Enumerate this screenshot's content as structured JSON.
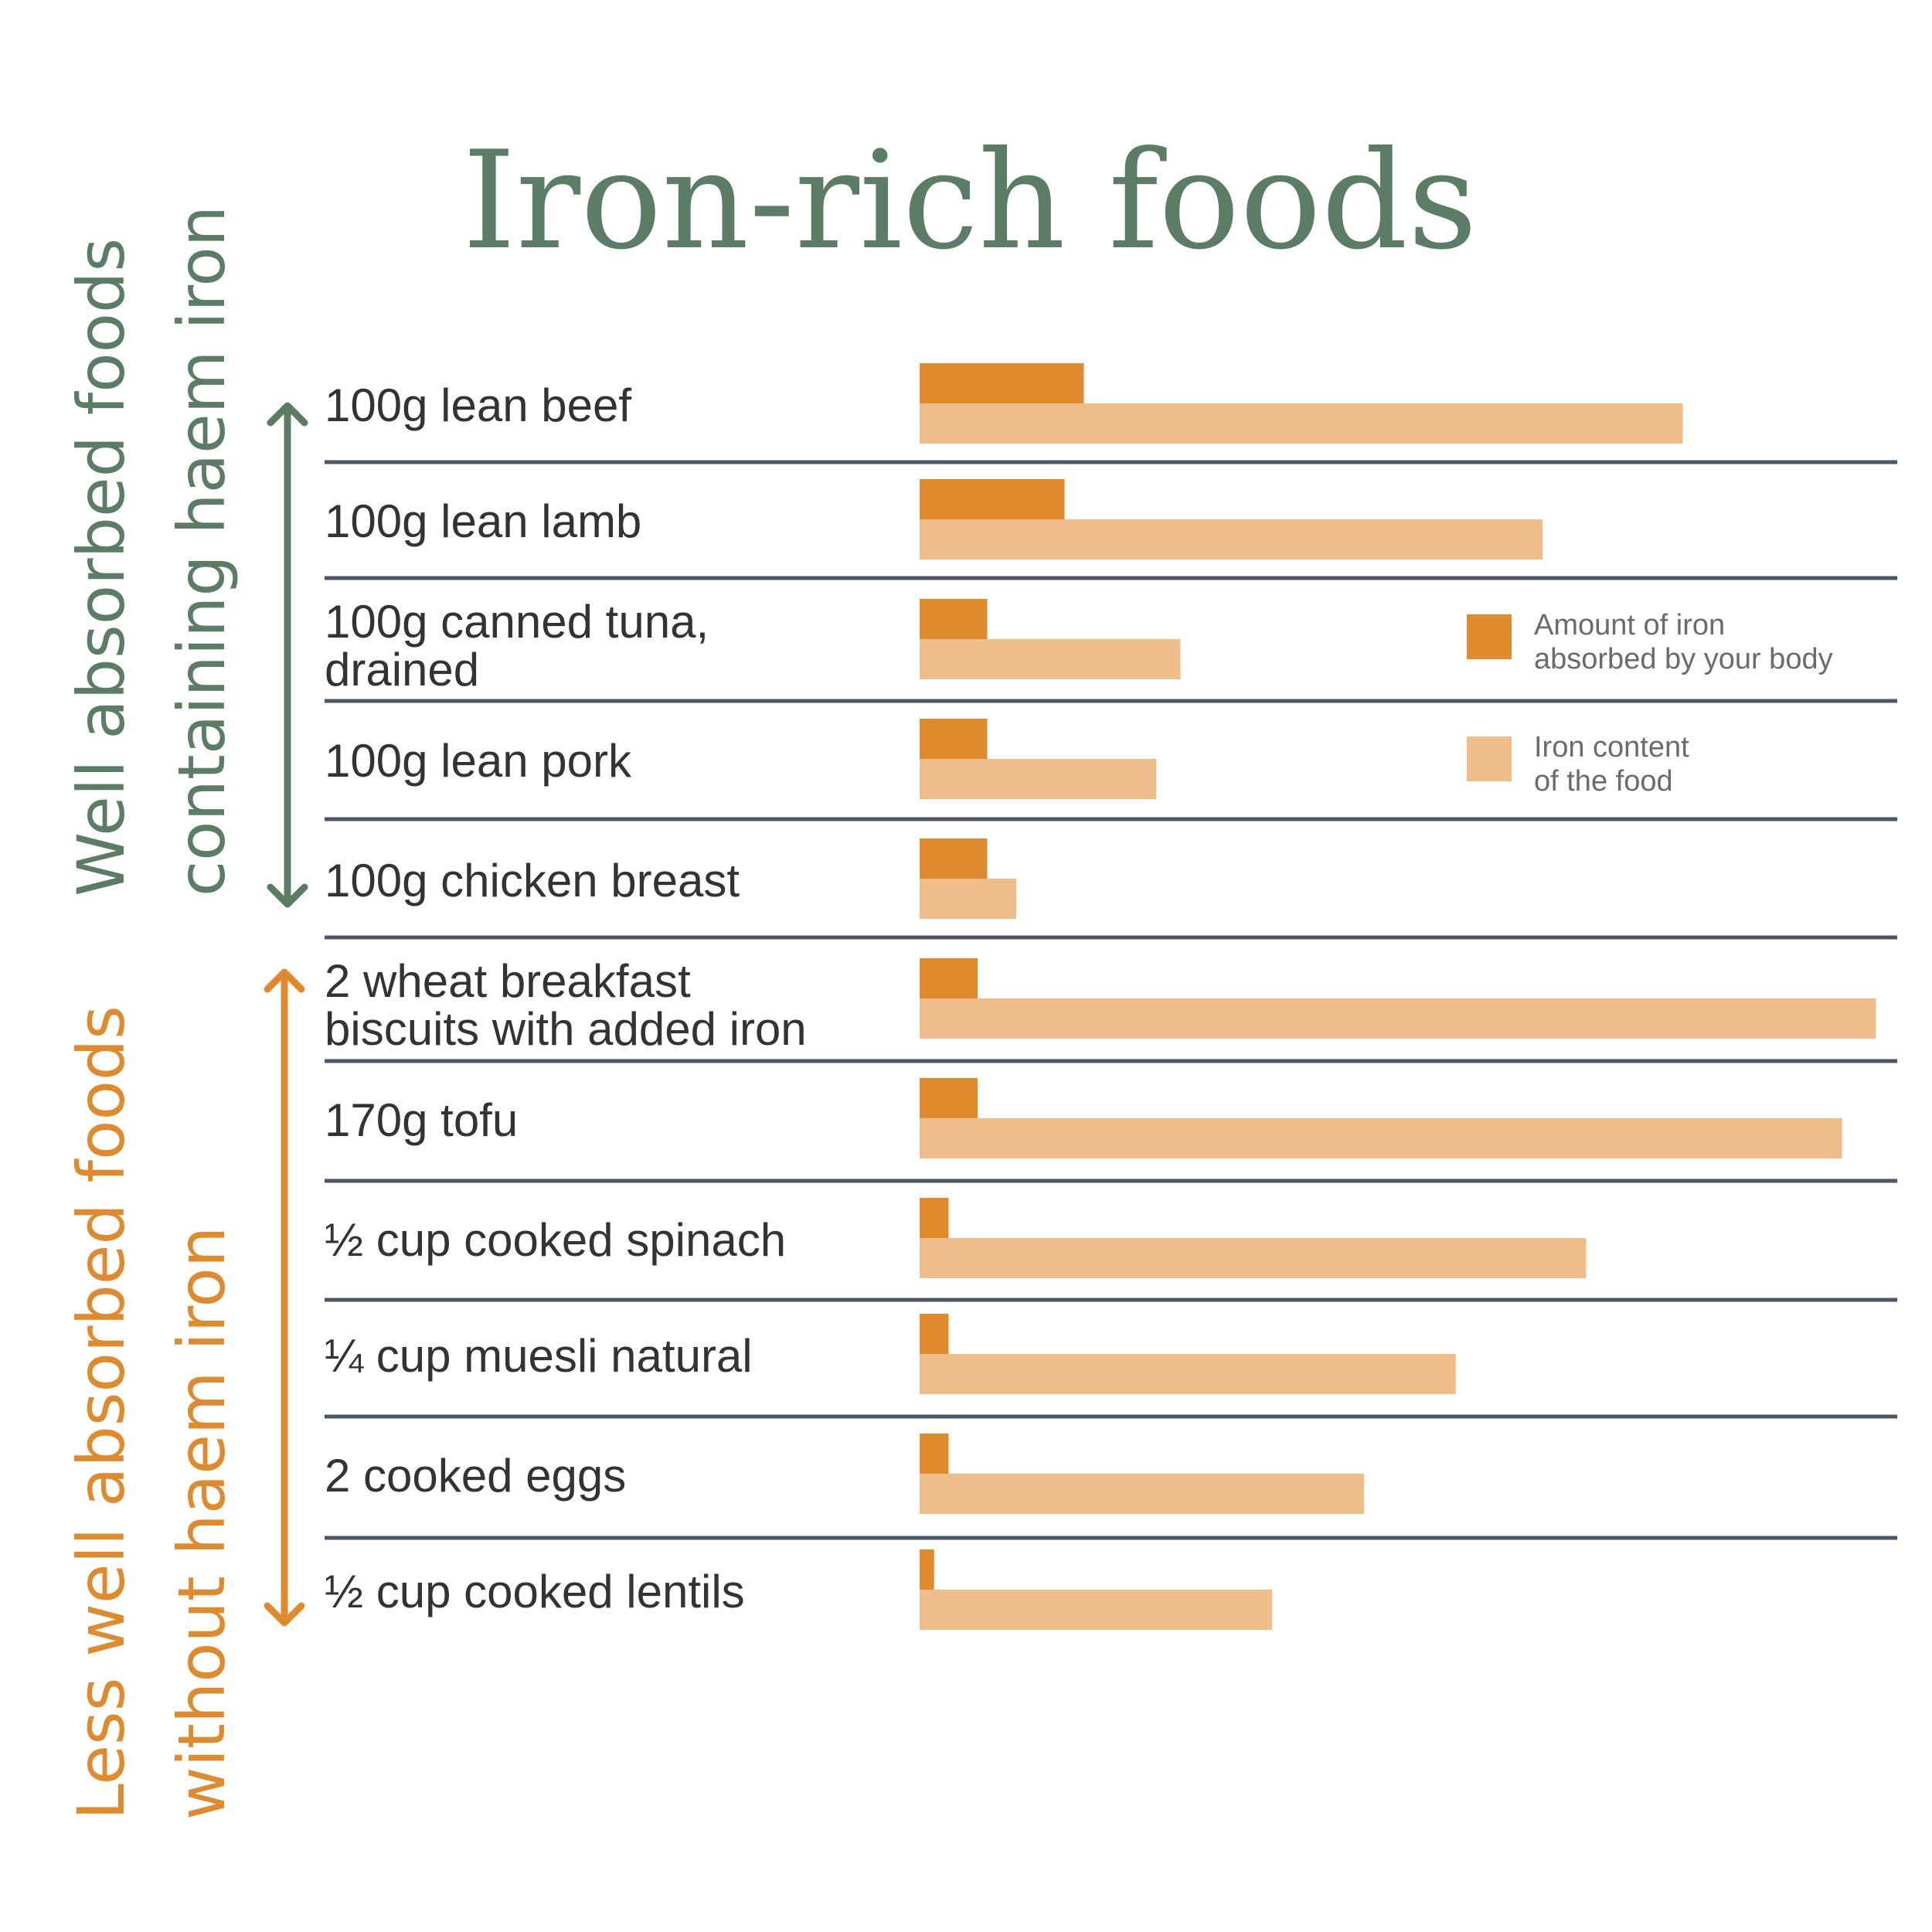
{
  "chart_data": {
    "type": "bar",
    "title": "Iron-rich foods",
    "groups": [
      {
        "label": [
          "Well absorbed foods",
          "containing haem iron"
        ],
        "color": "#5b7d66"
      },
      {
        "label": [
          "Less well absorbed foods",
          "without haem iron"
        ],
        "color": "#e08a2e"
      }
    ],
    "categories": [
      [
        "100g lean beef"
      ],
      [
        "100g lean lamb"
      ],
      [
        "100g canned tuna,",
        "drained"
      ],
      [
        "100g lean pork"
      ],
      [
        "100g chicken breast"
      ],
      [
        "2 wheat breakfast",
        "biscuits with added iron"
      ],
      [
        "170g tofu"
      ],
      [
        "½ cup cooked spinach"
      ],
      [
        "¼ cup muesli natural"
      ],
      [
        "2 cooked eggs"
      ],
      [
        "½ cup cooked lentils"
      ]
    ],
    "group_of_category": [
      0,
      0,
      0,
      0,
      0,
      1,
      1,
      1,
      1,
      1,
      1
    ],
    "series": [
      {
        "name": "Amount of iron absorbed by your body",
        "color": "#e08a2e",
        "values": [
          0.17,
          0.15,
          0.07,
          0.07,
          0.07,
          0.06,
          0.06,
          0.03,
          0.03,
          0.03,
          0.015
        ]
      },
      {
        "name": "Iron content of the food",
        "color": "#efbd8a",
        "values": [
          0.79,
          0.645,
          0.27,
          0.245,
          0.1,
          0.99,
          0.955,
          0.69,
          0.555,
          0.46,
          0.365
        ]
      }
    ],
    "legend": {
      "position": "right",
      "items": [
        {
          "lines": [
            "Amount of iron",
            "absorbed by your body"
          ],
          "color": "#e08a2e"
        },
        {
          "lines": [
            "Iron content",
            "of the food"
          ],
          "color": "#efbd8a"
        }
      ]
    },
    "xlim": [
      0,
      1
    ],
    "grid": false,
    "axes_visible": false
  }
}
